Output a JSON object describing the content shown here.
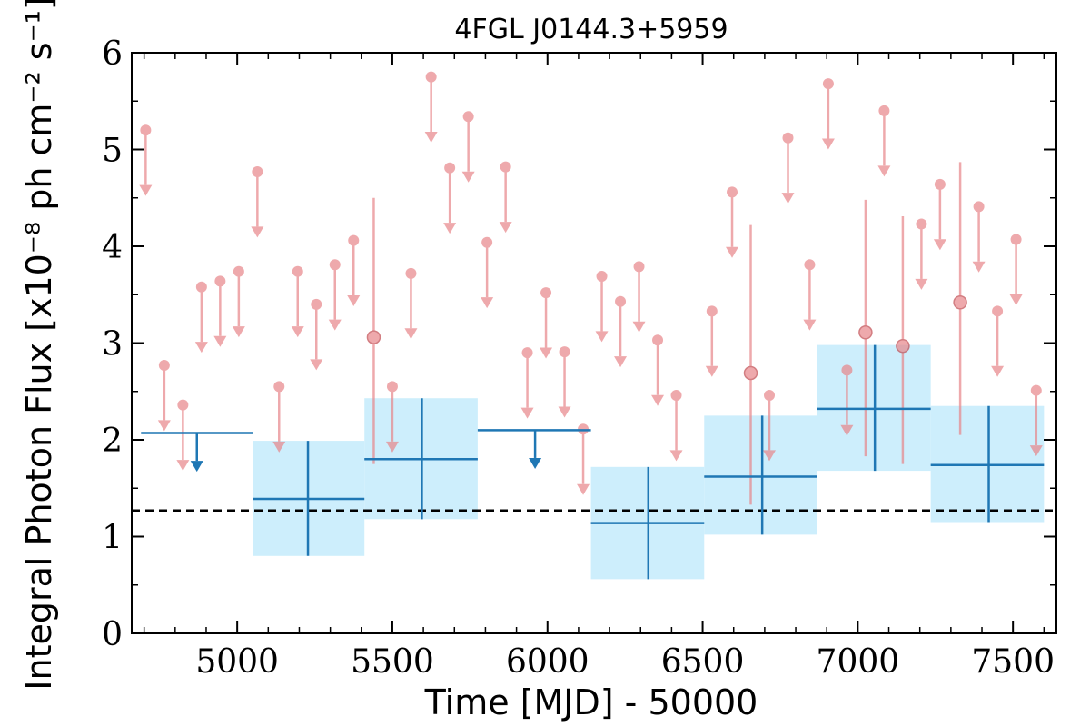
{
  "chart_data": {
    "type": "scatter",
    "title": "4FGL J0144.3+5959",
    "xlabel": "Time [MJD] - 50000",
    "ylabel": "Integral Photon Flux [x10⁻⁸ ph cm⁻² s⁻¹]",
    "xlim": [
      4660,
      7640
    ],
    "ylim": [
      0,
      6
    ],
    "xticks": [
      5000,
      5500,
      6000,
      6500,
      7000,
      7500
    ],
    "yticks": [
      0,
      1,
      2,
      3,
      4,
      5,
      6
    ],
    "reference_level": 1.27,
    "colors": {
      "long_bins": "#1f77b4",
      "long_bins_band": "#cdeefc",
      "short_bins": "#e8868a",
      "reference_line": "#000000"
    },
    "series": [
      {
        "bins": [
          {
            "x": 4870,
            "x0": 4690,
            "x1": 5050,
            "upper_limit": true,
            "y": 2.07
          },
          {
            "x": 5228,
            "x0": 5050,
            "x1": 5410,
            "y": 1.39,
            "ylo": 0.8,
            "yhi": 1.99
          },
          {
            "x": 5595,
            "x0": 5410,
            "x1": 5775,
            "y": 1.8,
            "ylo": 1.18,
            "yhi": 2.43
          },
          {
            "x": 5960,
            "x0": 5775,
            "x1": 6140,
            "upper_limit": true,
            "y": 2.1
          },
          {
            "x": 6325,
            "x0": 6140,
            "x1": 6505,
            "y": 1.14,
            "ylo": 0.56,
            "yhi": 1.72
          },
          {
            "x": 6692,
            "x0": 6505,
            "x1": 6870,
            "y": 1.62,
            "ylo": 1.02,
            "yhi": 2.25
          },
          {
            "x": 7055,
            "x0": 6870,
            "x1": 7235,
            "y": 2.32,
            "ylo": 1.68,
            "yhi": 2.98
          },
          {
            "x": 7422,
            "x0": 7235,
            "x1": 7600,
            "y": 1.74,
            "ylo": 1.15,
            "yhi": 2.35
          }
        ]
      },
      {
        "bins": [
          {
            "x": 4705,
            "upper_limit": true,
            "y": 5.2
          },
          {
            "x": 4765,
            "upper_limit": true,
            "y": 2.77
          },
          {
            "x": 4825,
            "upper_limit": true,
            "y": 2.36
          },
          {
            "x": 4885,
            "upper_limit": true,
            "y": 3.58
          },
          {
            "x": 4945,
            "upper_limit": true,
            "y": 3.64
          },
          {
            "x": 5005,
            "upper_limit": true,
            "y": 3.74
          },
          {
            "x": 5065,
            "upper_limit": true,
            "y": 4.77
          },
          {
            "x": 5135,
            "upper_limit": true,
            "y": 2.55
          },
          {
            "x": 5195,
            "upper_limit": true,
            "y": 3.74
          },
          {
            "x": 5255,
            "upper_limit": true,
            "y": 3.4
          },
          {
            "x": 5315,
            "upper_limit": true,
            "y": 3.81
          },
          {
            "x": 5375,
            "upper_limit": true,
            "y": 4.06
          },
          {
            "x": 5440,
            "y": 3.06,
            "ylo": 1.75,
            "yhi": 4.5
          },
          {
            "x": 5500,
            "upper_limit": true,
            "y": 2.55
          },
          {
            "x": 5560,
            "upper_limit": true,
            "y": 3.72
          },
          {
            "x": 5625,
            "upper_limit": true,
            "y": 5.75
          },
          {
            "x": 5685,
            "upper_limit": true,
            "y": 4.81
          },
          {
            "x": 5745,
            "upper_limit": true,
            "y": 5.34
          },
          {
            "x": 5805,
            "upper_limit": true,
            "y": 4.04
          },
          {
            "x": 5865,
            "upper_limit": true,
            "y": 4.82
          },
          {
            "x": 5935,
            "upper_limit": true,
            "y": 2.9
          },
          {
            "x": 5995,
            "upper_limit": true,
            "y": 3.52
          },
          {
            "x": 6055,
            "upper_limit": true,
            "y": 2.91
          },
          {
            "x": 6115,
            "upper_limit": true,
            "y": 2.11
          },
          {
            "x": 6175,
            "upper_limit": true,
            "y": 3.69
          },
          {
            "x": 6235,
            "upper_limit": true,
            "y": 3.43
          },
          {
            "x": 6295,
            "upper_limit": true,
            "y": 3.79
          },
          {
            "x": 6355,
            "upper_limit": true,
            "y": 3.03
          },
          {
            "x": 6415,
            "upper_limit": true,
            "y": 2.46
          },
          {
            "x": 6530,
            "upper_limit": true,
            "y": 3.33
          },
          {
            "x": 6595,
            "upper_limit": true,
            "y": 4.56
          },
          {
            "x": 6655,
            "y": 2.69,
            "ylo": 1.33,
            "yhi": 4.22
          },
          {
            "x": 6715,
            "upper_limit": true,
            "y": 2.46
          },
          {
            "x": 6775,
            "upper_limit": true,
            "y": 5.12
          },
          {
            "x": 6845,
            "upper_limit": true,
            "y": 3.81
          },
          {
            "x": 6905,
            "upper_limit": true,
            "y": 5.68
          },
          {
            "x": 6965,
            "upper_limit": true,
            "y": 2.72
          },
          {
            "x": 7025,
            "y": 3.11,
            "ylo": 1.83,
            "yhi": 4.48
          },
          {
            "x": 7085,
            "upper_limit": true,
            "y": 5.4
          },
          {
            "x": 7145,
            "y": 2.97,
            "ylo": 1.75,
            "yhi": 4.31
          },
          {
            "x": 7205,
            "upper_limit": true,
            "y": 4.23
          },
          {
            "x": 7265,
            "upper_limit": true,
            "y": 4.64
          },
          {
            "x": 7330,
            "y": 3.42,
            "ylo": 2.05,
            "yhi": 4.87
          },
          {
            "x": 7390,
            "upper_limit": true,
            "y": 4.41
          },
          {
            "x": 7450,
            "upper_limit": true,
            "y": 3.33
          },
          {
            "x": 7510,
            "upper_limit": true,
            "y": 4.07
          },
          {
            "x": 7575,
            "upper_limit": true,
            "y": 2.51
          }
        ]
      }
    ]
  }
}
